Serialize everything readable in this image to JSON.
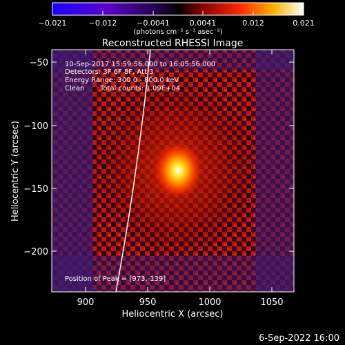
{
  "colorbar": {
    "ticks": [
      "−0.021",
      "−0.012",
      "−0.0041",
      "0.0041",
      "0.012",
      "0.021"
    ],
    "unit_label": "(photons cm⁻² s⁻¹ asec⁻²)"
  },
  "title": "Reconstructed RHESSI Image",
  "info": {
    "time_range": "10-Sep-2017 15:59:56.000 to 16:05:56.000",
    "detectors": "Detectors: 3F 6F 8F, Att 3",
    "energy": "Energy Range: 300.0 - 800.0 keV",
    "clean": "Clean",
    "counts": "Total counts: 1.09E+04",
    "peak": "Position of Peak = [973,-139]"
  },
  "axes": {
    "xlabel": "Heliocentric X (arcsec)",
    "ylabel": "Heliocentric Y (arcsec)",
    "xticks": [
      "900",
      "950",
      "1000",
      "1050"
    ],
    "yticks": [
      "−50",
      "−100",
      "−150",
      "−200"
    ]
  },
  "footer_date": "6-Sep-2022 16:00",
  "colors": {
    "colorbar_low": "#1a00ff",
    "colorbar_mid": "#000000",
    "colorbar_high": "#ffffff",
    "flare_core": "#ffe93a",
    "limb": "#ffffff"
  }
}
